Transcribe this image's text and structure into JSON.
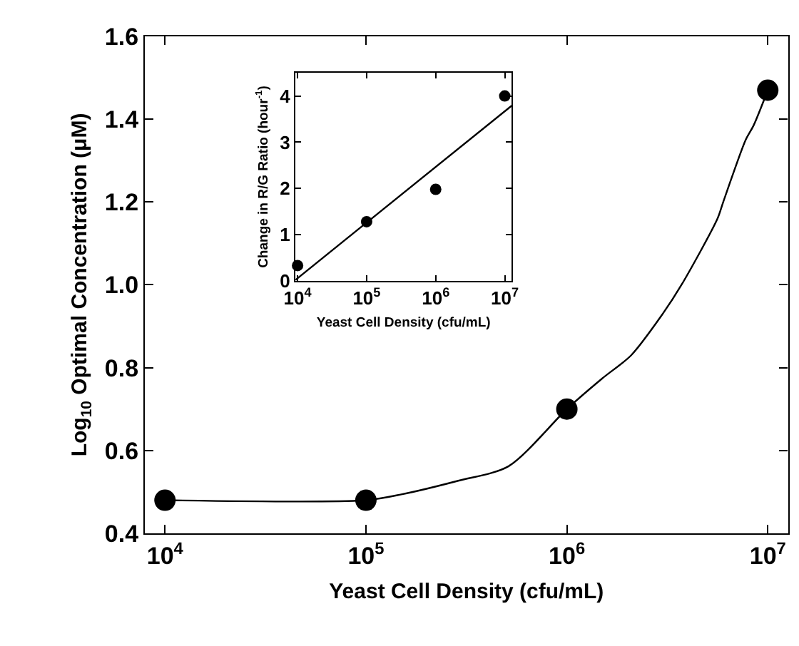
{
  "chart_data": [
    {
      "type": "scatter",
      "xlabel": "Yeast Cell Density (cfu/mL)",
      "ylabel": "Log$_{10}$ Optimal Concentration (μM)",
      "log": "x",
      "xlim": [
        7943,
        12600000
      ],
      "ylim": [
        0.4,
        1.6
      ],
      "xticks": [
        {
          "value": 10000,
          "label": "10$^{4}$"
        },
        {
          "value": 100000,
          "label": "10$^{5}$"
        },
        {
          "value": 1000000,
          "label": "10$^{6}$"
        },
        {
          "value": 10000000,
          "label": "10$^{7}$"
        }
      ],
      "yticks": [
        {
          "value": 0.4,
          "label": "0.4"
        },
        {
          "value": 0.6,
          "label": "0.6"
        },
        {
          "value": 0.8,
          "label": "0.8"
        },
        {
          "value": 1.0,
          "label": "1.0"
        },
        {
          "value": 1.2,
          "label": "1.2"
        },
        {
          "value": 1.4,
          "label": "1.4"
        },
        {
          "value": 1.6,
          "label": "1.6"
        }
      ],
      "marker": "circle",
      "series": [
        {
          "type": "line",
          "color": "#000000",
          "marker": "none",
          "x": [
            10000,
            100000,
            150000,
            288000,
            513000,
            1000000,
            1500000,
            2090000,
            3000000,
            3720000,
            5620000,
            6000000,
            7760000,
            8500000,
            10000000
          ],
          "values": [
            0.48,
            0.48,
            0.494,
            0.527,
            0.562,
            0.7,
            0.774,
            0.83,
            0.93,
            1.0,
            1.16,
            1.2,
            1.35,
            1.385,
            1.47
          ]
        },
        {
          "color": "#000000",
          "x": [
            10000,
            100000,
            1000000,
            10000000
          ],
          "values": [
            0.48,
            0.48,
            0.7,
            1.47
          ]
        }
      ]
    },
    {
      "type": "scatter",
      "xlabel": "Yeast Cell Density (cfu/mL)",
      "ylabel": "Change in R/G Ratio (hour$^{-1}$)",
      "log": "x",
      "xlim": [
        9333,
        12600000
      ],
      "ylim": [
        0,
        4.5
      ],
      "xticks": [
        {
          "value": 10000,
          "label": "10$^{4}$"
        },
        {
          "value": 100000,
          "label": "10$^{5}$"
        },
        {
          "value": 1000000,
          "label": "10$^{6}$"
        },
        {
          "value": 10000000,
          "label": "10$^{7}$"
        }
      ],
      "yticks": [
        0,
        1,
        2,
        3,
        4
      ],
      "marker": "circle",
      "series": [
        {
          "type": "line",
          "color": "#000000",
          "marker": "none",
          "x": [
            9333,
            12600000
          ],
          "values": [
            0.02,
            3.79
          ]
        },
        {
          "color": "#000000",
          "x": [
            10000,
            100000,
            1000000,
            10000000
          ],
          "values": [
            0.33,
            1.28,
            1.98,
            4.0
          ]
        }
      ]
    }
  ]
}
